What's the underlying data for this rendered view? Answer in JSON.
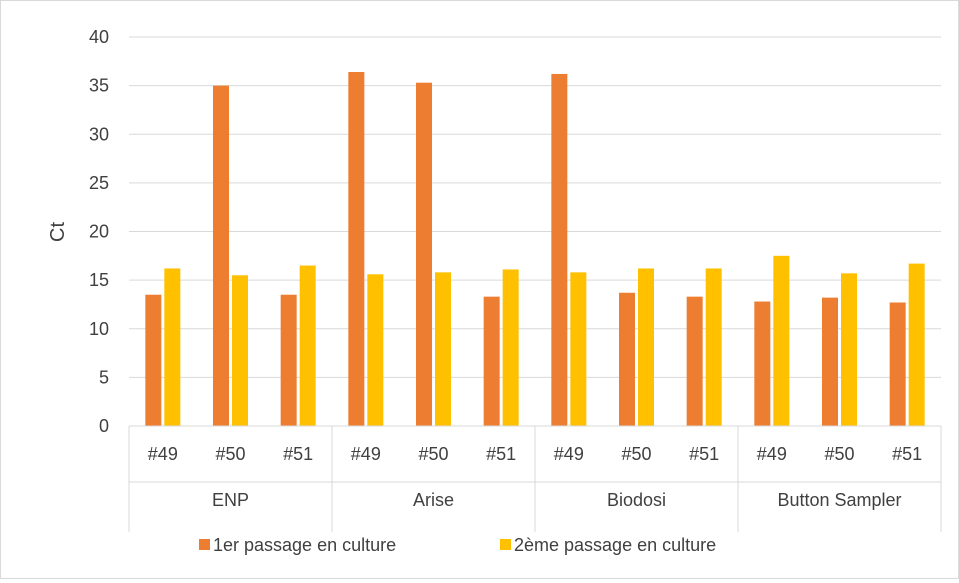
{
  "chart_data": {
    "type": "bar",
    "title": "",
    "xlabel": "",
    "ylabel": "Ct",
    "ylim": [
      0,
      40
    ],
    "yticks": [
      0,
      5,
      10,
      15,
      20,
      25,
      30,
      35,
      40
    ],
    "grid": true,
    "legend_position": "bottom",
    "groups": [
      {
        "label": "ENP",
        "categories": [
          "#49",
          "#50",
          "#51"
        ]
      },
      {
        "label": "Arise",
        "categories": [
          "#49",
          "#50",
          "#51"
        ]
      },
      {
        "label": "Biodosi",
        "categories": [
          "#49",
          "#50",
          "#51"
        ]
      },
      {
        "label": "Button Sampler",
        "categories": [
          "#49",
          "#50",
          "#51"
        ]
      }
    ],
    "series": [
      {
        "name": "1er passage en culture",
        "color": "#ed7d31",
        "values": [
          13.5,
          35.0,
          13.5,
          36.4,
          35.3,
          13.3,
          36.2,
          13.7,
          13.3,
          12.8,
          13.2,
          12.7
        ]
      },
      {
        "name": "2ème passage en culture",
        "color": "#ffc000",
        "values": [
          16.2,
          15.5,
          16.5,
          15.6,
          15.8,
          16.1,
          15.8,
          16.2,
          16.2,
          17.5,
          15.7,
          16.7
        ]
      }
    ]
  }
}
